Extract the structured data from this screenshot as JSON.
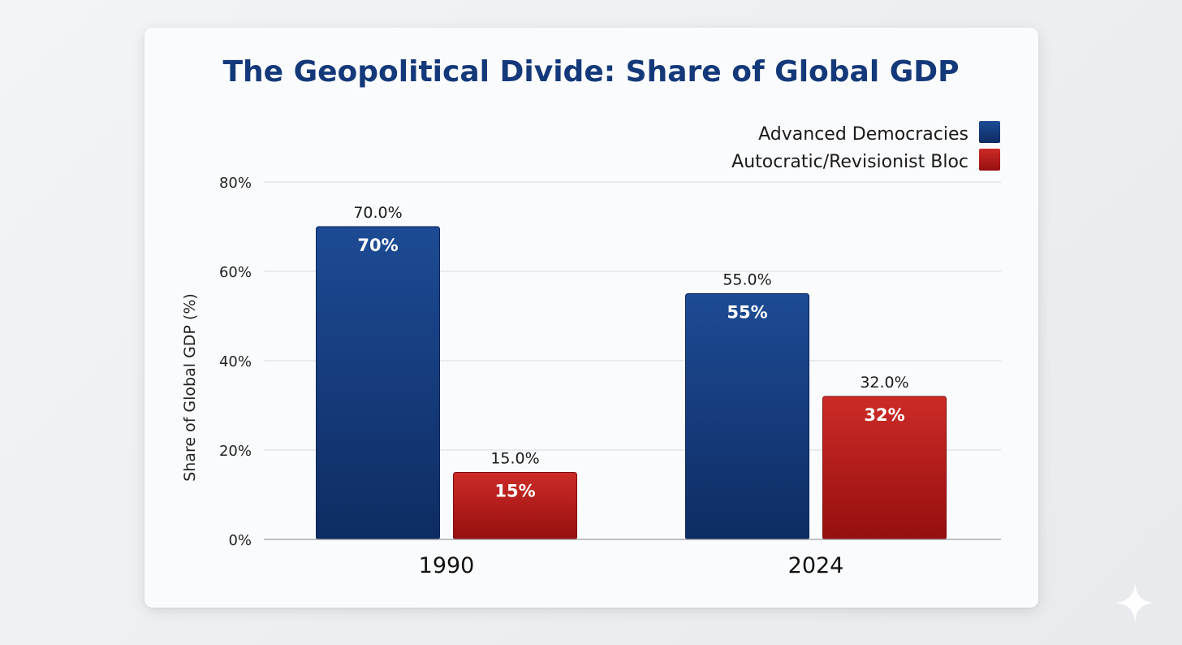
{
  "chart_data": {
    "type": "bar",
    "title": "The Geopolitical Divide: Share of Global GDP",
    "xlabel": "",
    "ylabel": "Share of Global GDP (%)",
    "categories": [
      "1990",
      "2024"
    ],
    "ylim": [
      0,
      80
    ],
    "yticks": [
      0,
      20,
      40,
      60,
      80
    ],
    "ytick_labels": [
      "0%",
      "20%",
      "40%",
      "60%",
      "80%"
    ],
    "grid": true,
    "legend_position": "top-right",
    "series": [
      {
        "name": "Advanced Democracies",
        "color": "#163f85",
        "values": [
          70,
          55
        ],
        "labels_above": [
          "70.0%",
          "55.0%"
        ],
        "labels_inside": [
          "70%",
          "55%"
        ]
      },
      {
        "name": "Autocratic/Revisionist Bloc",
        "color": "#b81c1c",
        "values": [
          15,
          32
        ],
        "labels_above": [
          "15.0%",
          "32.0%"
        ],
        "labels_inside": [
          "15%",
          "32%"
        ]
      }
    ]
  },
  "colors": {
    "title": "#14397a",
    "blue_top": "#1d4b94",
    "blue_bottom": "#0e2c63",
    "red_top": "#cc2b27",
    "red_bottom": "#960f0f"
  },
  "icons": {
    "corner": "sparkle-icon"
  }
}
